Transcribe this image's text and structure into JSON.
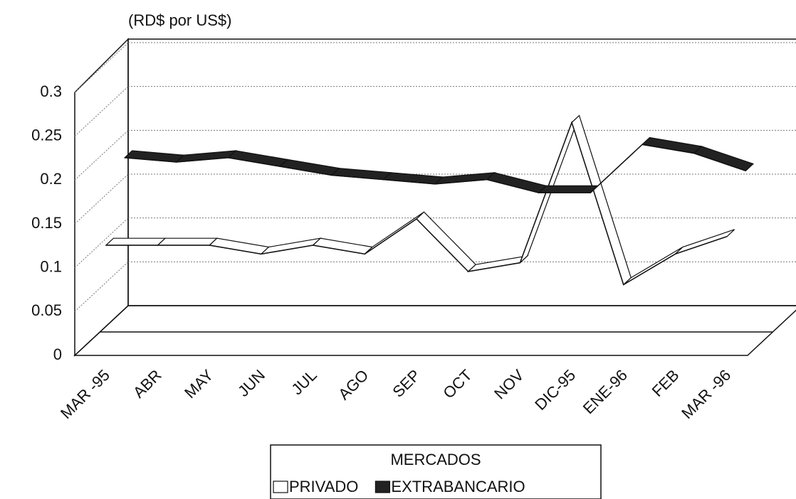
{
  "chart_data": {
    "type": "line3d",
    "y_label": "(RD$ por US$)",
    "categories": [
      "MAR -95",
      "ABR",
      "MAY",
      "JUN",
      "JUL",
      "AGO",
      "SEP",
      "OCT",
      "NOV",
      "DIC-95",
      "ENE-96",
      "FEB",
      "MAR -96"
    ],
    "series": [
      {
        "name": "PRIVADO",
        "color": "#ffffff",
        "values": [
          0.12,
          0.12,
          0.12,
          0.11,
          0.12,
          0.11,
          0.15,
          0.09,
          0.1,
          0.26,
          0.075,
          0.11,
          0.13
        ]
      },
      {
        "name": "EXTRABANCARIO",
        "color": "#222222",
        "values": [
          0.2,
          0.195,
          0.2,
          0.19,
          0.18,
          0.175,
          0.17,
          0.175,
          0.16,
          0.16,
          0.215,
          0.205,
          0.185
        ]
      }
    ],
    "ylim": [
      0,
      0.3
    ],
    "yticks": [
      0,
      0.05,
      0.1,
      0.15,
      0.2,
      0.25,
      0.3
    ],
    "grid": true,
    "legend_title": "MERCADOS",
    "legend_position": "bottom"
  }
}
